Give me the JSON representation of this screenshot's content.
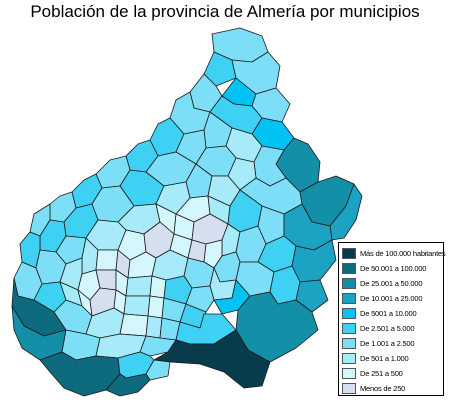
{
  "title": "Población de la provincia de Almería por municipios",
  "colors": {
    "c0": "#083b4b",
    "c1": "#0e6b7d",
    "c2": "#1390a8",
    "c3": "#1ca2c2",
    "c4": "#00c2f3",
    "c5": "#3fd1f4",
    "c6": "#7ddff7",
    "c7": "#a7ebfb",
    "c8": "#d4f6fd",
    "c9": "#d6dff0",
    "border": "#1a1a1a"
  },
  "legend": {
    "items": [
      {
        "label": "Más de 100.000 habitantes",
        "color": "#083b4b"
      },
      {
        "label": "De 50.001 a 100.000",
        "color": "#0e6b7d"
      },
      {
        "label": "De 25.001 a 50.000",
        "color": "#1390a8"
      },
      {
        "label": "De 10.001 a 25.000",
        "color": "#1ca2c2"
      },
      {
        "label": "De 5001 a 10.000",
        "color": "#00c2f3"
      },
      {
        "label": "De 2.501 a 5.000",
        "color": "#3fd1f4"
      },
      {
        "label": "De 1.001 a 2.500",
        "color": "#7ddff7"
      },
      {
        "label": "De 501 a 1.000",
        "color": "#a7ebfb"
      },
      {
        "label": "De 251 a 500",
        "color": "#d4f6fd"
      },
      {
        "label": "Menos de 250",
        "color": "#d6dff0"
      }
    ]
  }
}
